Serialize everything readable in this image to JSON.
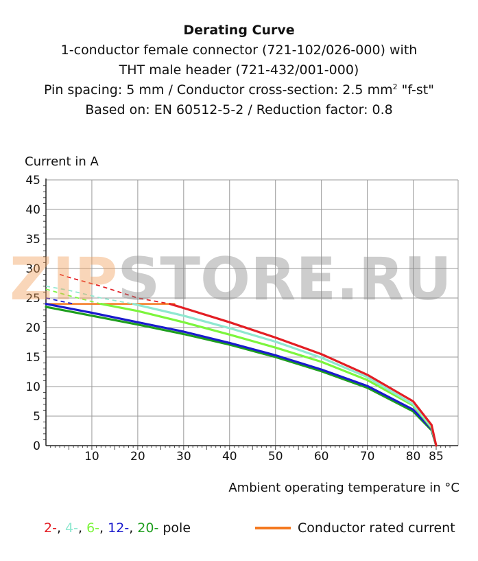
{
  "title": {
    "line1": "Derating Curve",
    "line2": "1-conductor female connector (721-102/026-000) with",
    "line3": "THT male header (721-432/001-000)",
    "line4_pre": "Pin spacing: 5 mm / Conductor cross-section: 2.5 mm",
    "line4_sup": "2",
    "line4_post": " \"f-st\"",
    "line5": "Based on: EN 60512-5-2 / Reduction factor: 0.8"
  },
  "watermark": {
    "text_orange": "ZIP",
    "text_gray": "STORE.RU"
  },
  "legend": {
    "poles": [
      {
        "text": "2-",
        "color": "#e31e24"
      },
      {
        "text": ", ",
        "color": "#111111"
      },
      {
        "text": "4-",
        "color": "#8fe8d0"
      },
      {
        "text": ", ",
        "color": "#111111"
      },
      {
        "text": "6-",
        "color": "#7cf53c"
      },
      {
        "text": ", ",
        "color": "#111111"
      },
      {
        "text": "12-",
        "color": "#1a1acc"
      },
      {
        "text": ", ",
        "color": "#111111"
      },
      {
        "text": "20-",
        "color": "#1e9e1e"
      },
      {
        "text": " pole",
        "color": "#111111"
      }
    ],
    "rated": {
      "label": "Conductor rated current",
      "color": "#f47920"
    }
  },
  "chart_data": {
    "type": "line",
    "title": "Derating Curve",
    "xlabel": "Ambient operating temperature in °C",
    "ylabel": "Current in A",
    "xlim": [
      0,
      85
    ],
    "ylim": [
      0,
      45
    ],
    "xticks": [
      10,
      20,
      30,
      40,
      50,
      60,
      70,
      80,
      85
    ],
    "yticks": [
      0,
      5,
      10,
      15,
      20,
      25,
      30,
      35,
      40,
      45
    ],
    "grid": true,
    "series": [
      {
        "name": "2-pole",
        "color": "#e31e24",
        "dashed_x": [
          3,
          5,
          12,
          20,
          27
        ],
        "dashed_y": [
          29.0,
          28.5,
          27.0,
          25.0,
          24.0
        ],
        "x": [
          27,
          30,
          40,
          50,
          60,
          70,
          80,
          84,
          85
        ],
        "y": [
          24.0,
          23.3,
          20.9,
          18.3,
          15.5,
          12.0,
          7.5,
          3.5,
          0
        ]
      },
      {
        "name": "4-pole",
        "color": "#8fe8d0",
        "dashed_x": [
          0,
          5,
          12,
          19
        ],
        "dashed_y": [
          27.0,
          26.3,
          25.0,
          24.0
        ],
        "x": [
          19,
          30,
          40,
          50,
          60,
          70,
          80,
          84,
          85
        ],
        "y": [
          24.0,
          22.0,
          19.9,
          17.6,
          14.9,
          11.6,
          7.0,
          3.2,
          0
        ]
      },
      {
        "name": "6-pole",
        "color": "#7cf53c",
        "dashed_x": [
          0,
          4,
          8,
          12
        ],
        "dashed_y": [
          26.5,
          25.6,
          24.8,
          24.0
        ],
        "x": [
          12,
          20,
          30,
          40,
          50,
          60,
          70,
          80,
          84,
          85
        ],
        "y": [
          24.0,
          22.8,
          20.9,
          18.8,
          16.6,
          14.2,
          11.1,
          6.8,
          3.0,
          0
        ]
      },
      {
        "name": "12-pole",
        "color": "#1a1acc",
        "dashed_x": [
          0,
          6
        ],
        "dashed_y": [
          25.0,
          24.0
        ],
        "x": [
          0,
          10,
          20,
          30,
          40,
          50,
          60,
          70,
          80,
          84,
          85
        ],
        "y": [
          24.0,
          22.5,
          20.9,
          19.3,
          17.4,
          15.3,
          12.9,
          10.1,
          6.1,
          2.8,
          0
        ]
      },
      {
        "name": "20-pole",
        "color": "#1e9e1e",
        "x": [
          0,
          10,
          20,
          30,
          40,
          50,
          60,
          70,
          80,
          84,
          85
        ],
        "y": [
          23.5,
          22.0,
          20.5,
          18.9,
          17.1,
          15.0,
          12.6,
          9.8,
          5.8,
          2.6,
          0
        ]
      },
      {
        "name": "Conductor rated current",
        "color": "#f47920",
        "x": [
          0,
          28
        ],
        "y": [
          24,
          24
        ]
      }
    ]
  }
}
